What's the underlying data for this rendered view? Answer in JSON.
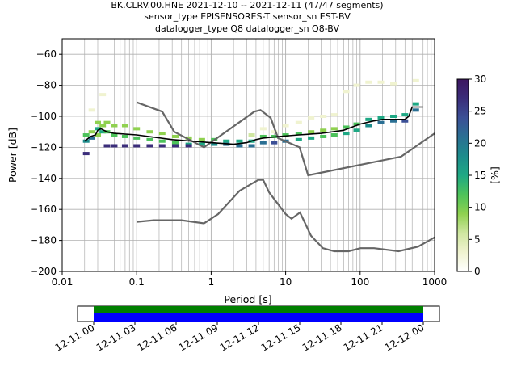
{
  "title_lines": [
    "BK.CLRV.00.HNE   2021-12-10 -- 2021-12-11  (47/47 segments)",
    "sensor_type EPISENSORES-T sensor_sn EST-BV",
    "datalogger_type Q8 datalogger_sn Q8-BV"
  ],
  "chart_data": {
    "type": "heatmap",
    "xlabel": "Period [s]",
    "ylabel": "Power [dB]",
    "x_scale": "log",
    "xlim": [
      0.01,
      1000
    ],
    "ylim": [
      -200,
      -50
    ],
    "x_ticks": [
      {
        "value": 0.01,
        "label": "0.01"
      },
      {
        "value": 0.1,
        "label": "0.1"
      },
      {
        "value": 1,
        "label": "1"
      },
      {
        "value": 10,
        "label": "10"
      },
      {
        "value": 100,
        "label": "100"
      },
      {
        "value": 1000,
        "label": "1000"
      }
    ],
    "y_ticks": [
      {
        "value": -60,
        "label": "−60"
      },
      {
        "value": -80,
        "label": "−80"
      },
      {
        "value": -100,
        "label": "−100"
      },
      {
        "value": -120,
        "label": "−120"
      },
      {
        "value": -140,
        "label": "−140"
      },
      {
        "value": -160,
        "label": "−160"
      },
      {
        "value": -180,
        "label": "−180"
      },
      {
        "value": -200,
        "label": "−200"
      }
    ],
    "grid": true,
    "colorbar": {
      "label": "[%]",
      "range": [
        0,
        30
      ],
      "ticks": [
        {
          "value": 0,
          "label": "0"
        },
        {
          "value": 5,
          "label": "5"
        },
        {
          "value": 10,
          "label": "10"
        },
        {
          "value": 15,
          "label": "15"
        },
        {
          "value": 20,
          "label": "20"
        },
        {
          "value": 25,
          "label": "25"
        },
        {
          "value": 30,
          "label": "30"
        }
      ],
      "colors": [
        "#ffffff",
        "#f0f3d0",
        "#cfe6a0",
        "#8fd14f",
        "#4cc25a",
        "#1ea884",
        "#1d8c8c",
        "#2a6f93",
        "#3b4f96",
        "#3b2d7a",
        "#3d1660"
      ]
    },
    "noise_models": [
      {
        "name": "high",
        "points": [
          [
            0.1,
            -91
          ],
          [
            0.22,
            -97
          ],
          [
            0.32,
            -110
          ],
          [
            0.8,
            -120
          ],
          [
            3.8,
            -97
          ],
          [
            4.6,
            -96
          ],
          [
            6.3,
            -101
          ],
          [
            7.9,
            -114
          ],
          [
            15.4,
            -120
          ],
          [
            20,
            -138
          ],
          [
            354.8,
            -126
          ],
          [
            1000,
            -111
          ]
        ]
      },
      {
        "name": "low",
        "points": [
          [
            0.1,
            -168
          ],
          [
            0.17,
            -167
          ],
          [
            0.4,
            -167
          ],
          [
            0.8,
            -169
          ],
          [
            1.24,
            -163
          ],
          [
            2.4,
            -148
          ],
          [
            4.3,
            -141
          ],
          [
            5,
            -141
          ],
          [
            6,
            -149
          ],
          [
            10,
            -163
          ],
          [
            12,
            -166
          ],
          [
            15.6,
            -162
          ],
          [
            21.9,
            -177
          ],
          [
            31.6,
            -185
          ],
          [
            45,
            -187
          ],
          [
            70,
            -187
          ],
          [
            101,
            -185
          ],
          [
            154,
            -185
          ],
          [
            328,
            -187
          ],
          [
            600,
            -184
          ],
          [
            1000,
            -178
          ]
        ]
      }
    ],
    "mean_curve": [
      [
        0.02,
        -116
      ],
      [
        0.024,
        -113
      ],
      [
        0.028,
        -112
      ],
      [
        0.03,
        -109
      ],
      [
        0.033,
        -108
      ],
      [
        0.04,
        -110
      ],
      [
        0.05,
        -111
      ],
      [
        0.1,
        -112
      ],
      [
        0.3,
        -115
      ],
      [
        1,
        -117
      ],
      [
        2,
        -118
      ],
      [
        3,
        -117
      ],
      [
        4,
        -115
      ],
      [
        5,
        -114
      ],
      [
        8,
        -113
      ],
      [
        15,
        -112
      ],
      [
        30,
        -111
      ],
      [
        60,
        -109
      ],
      [
        100,
        -105
      ],
      [
        150,
        -103
      ],
      [
        200,
        -102
      ],
      [
        400,
        -102
      ],
      [
        450,
        -100
      ],
      [
        500,
        -94
      ],
      [
        700,
        -94
      ]
    ],
    "density_cells": [
      {
        "x": 0.021,
        "y": -112,
        "v": 12
      },
      {
        "x": 0.021,
        "y": -116,
        "v": 18
      },
      {
        "x": 0.021,
        "y": -124,
        "v": 26
      },
      {
        "x": 0.025,
        "y": -110,
        "v": 10
      },
      {
        "x": 0.025,
        "y": -114,
        "v": 20
      },
      {
        "x": 0.025,
        "y": -96,
        "v": 3
      },
      {
        "x": 0.03,
        "y": -104,
        "v": 8
      },
      {
        "x": 0.03,
        "y": -108,
        "v": 14
      },
      {
        "x": 0.03,
        "y": -112,
        "v": 9
      },
      {
        "x": 0.035,
        "y": -86,
        "v": 2
      },
      {
        "x": 0.035,
        "y": -106,
        "v": 9
      },
      {
        "x": 0.035,
        "y": -110,
        "v": 16
      },
      {
        "x": 0.04,
        "y": -104,
        "v": 8
      },
      {
        "x": 0.04,
        "y": -110,
        "v": 12
      },
      {
        "x": 0.04,
        "y": -119,
        "v": 28
      },
      {
        "x": 0.05,
        "y": -106,
        "v": 9
      },
      {
        "x": 0.05,
        "y": -112,
        "v": 13
      },
      {
        "x": 0.05,
        "y": -119,
        "v": 28
      },
      {
        "x": 0.07,
        "y": -106,
        "v": 8
      },
      {
        "x": 0.07,
        "y": -113,
        "v": 12
      },
      {
        "x": 0.07,
        "y": -119,
        "v": 28
      },
      {
        "x": 0.1,
        "y": -108,
        "v": 9
      },
      {
        "x": 0.1,
        "y": -114,
        "v": 13
      },
      {
        "x": 0.1,
        "y": -119,
        "v": 28
      },
      {
        "x": 0.15,
        "y": -110,
        "v": 9
      },
      {
        "x": 0.15,
        "y": -115,
        "v": 11
      },
      {
        "x": 0.15,
        "y": -119,
        "v": 27
      },
      {
        "x": 0.22,
        "y": -111,
        "v": 8
      },
      {
        "x": 0.22,
        "y": -116,
        "v": 11
      },
      {
        "x": 0.22,
        "y": -119,
        "v": 27
      },
      {
        "x": 0.33,
        "y": -113,
        "v": 9
      },
      {
        "x": 0.33,
        "y": -117,
        "v": 12
      },
      {
        "x": 0.33,
        "y": -119,
        "v": 26
      },
      {
        "x": 0.5,
        "y": -114,
        "v": 9
      },
      {
        "x": 0.5,
        "y": -118,
        "v": 14
      },
      {
        "x": 0.5,
        "y": -119,
        "v": 26
      },
      {
        "x": 0.75,
        "y": -115,
        "v": 10
      },
      {
        "x": 0.75,
        "y": -118,
        "v": 15
      },
      {
        "x": 1.1,
        "y": -115,
        "v": 12
      },
      {
        "x": 1.1,
        "y": -118,
        "v": 18
      },
      {
        "x": 1.6,
        "y": -116,
        "v": 14
      },
      {
        "x": 1.6,
        "y": -118,
        "v": 20
      },
      {
        "x": 2.4,
        "y": -116,
        "v": 15
      },
      {
        "x": 2.4,
        "y": -119,
        "v": 22
      },
      {
        "x": 3.5,
        "y": -112,
        "v": 5
      },
      {
        "x": 3.5,
        "y": -116,
        "v": 16
      },
      {
        "x": 3.5,
        "y": -119,
        "v": 20
      },
      {
        "x": 5,
        "y": -108,
        "v": 3
      },
      {
        "x": 5,
        "y": -113,
        "v": 12
      },
      {
        "x": 5,
        "y": -117,
        "v": 22
      },
      {
        "x": 7,
        "y": -110,
        "v": 4
      },
      {
        "x": 7,
        "y": -113,
        "v": 13
      },
      {
        "x": 7,
        "y": -117,
        "v": 24
      },
      {
        "x": 10,
        "y": -106,
        "v": 3
      },
      {
        "x": 10,
        "y": -112,
        "v": 12
      },
      {
        "x": 10,
        "y": -116,
        "v": 22
      },
      {
        "x": 15,
        "y": -104,
        "v": 2
      },
      {
        "x": 15,
        "y": -111,
        "v": 11
      },
      {
        "x": 15,
        "y": -115,
        "v": 16
      },
      {
        "x": 22,
        "y": -101,
        "v": 2
      },
      {
        "x": 22,
        "y": -110,
        "v": 10
      },
      {
        "x": 22,
        "y": -114,
        "v": 14
      },
      {
        "x": 32,
        "y": -100,
        "v": 2
      },
      {
        "x": 32,
        "y": -109,
        "v": 10
      },
      {
        "x": 32,
        "y": -113,
        "v": 13
      },
      {
        "x": 45,
        "y": -99,
        "v": 2
      },
      {
        "x": 45,
        "y": -108,
        "v": 10
      },
      {
        "x": 45,
        "y": -112,
        "v": 13
      },
      {
        "x": 65,
        "y": -84,
        "v": 2
      },
      {
        "x": 65,
        "y": -107,
        "v": 11
      },
      {
        "x": 65,
        "y": -111,
        "v": 14
      },
      {
        "x": 90,
        "y": -80,
        "v": 2
      },
      {
        "x": 90,
        "y": -105,
        "v": 12
      },
      {
        "x": 90,
        "y": -109,
        "v": 16
      },
      {
        "x": 130,
        "y": -78,
        "v": 2
      },
      {
        "x": 130,
        "y": -102,
        "v": 14
      },
      {
        "x": 130,
        "y": -106,
        "v": 18
      },
      {
        "x": 190,
        "y": -78,
        "v": 2
      },
      {
        "x": 190,
        "y": -101,
        "v": 15
      },
      {
        "x": 190,
        "y": -104,
        "v": 20
      },
      {
        "x": 280,
        "y": -79,
        "v": 2
      },
      {
        "x": 280,
        "y": -100,
        "v": 16
      },
      {
        "x": 280,
        "y": -103,
        "v": 22
      },
      {
        "x": 400,
        "y": -99,
        "v": 16
      },
      {
        "x": 400,
        "y": -103,
        "v": 24
      },
      {
        "x": 560,
        "y": -77,
        "v": 2
      },
      {
        "x": 560,
        "y": -92,
        "v": 14
      },
      {
        "x": 560,
        "y": -96,
        "v": 22
      }
    ]
  },
  "timeline": {
    "x_ticks": [
      "12-11 00",
      "12-11 03",
      "12-11 06",
      "12-11 09",
      "12-11 12",
      "12-11 15",
      "12-11 18",
      "12-11 21",
      "12-12 00"
    ],
    "bars": [
      {
        "name": "data",
        "color": "#008000"
      },
      {
        "name": "used",
        "color": "#0000ff"
      }
    ]
  }
}
